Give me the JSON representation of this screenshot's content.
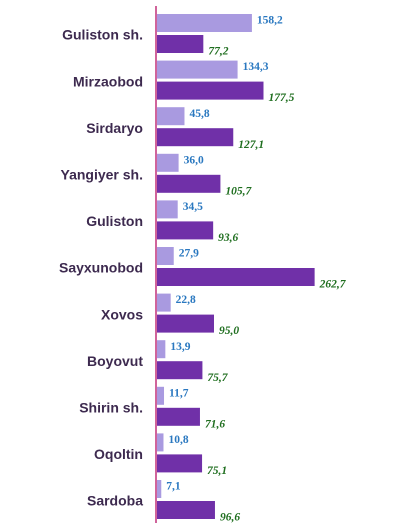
{
  "chart_data": {
    "type": "bar",
    "orientation": "horizontal",
    "categories": [
      "Guliston sh.",
      "Mirzaobod",
      "Sirdaryo",
      "Yangiyer sh.",
      "Guliston",
      "Sayxunobod",
      "Xovos",
      "Boyovut",
      "Shirin sh.",
      "Oqoltin",
      "Sardoba"
    ],
    "series": [
      {
        "values": [
          158.2,
          134.3,
          45.8,
          36.0,
          34.5,
          27.9,
          22.8,
          13.9,
          11.7,
          10.8,
          7.1
        ],
        "labels": [
          "158,2",
          "134,3",
          "45,8",
          "36,0",
          "34,5",
          "27,9",
          "22,8",
          "13,9",
          "11,7",
          "10,8",
          "7,1"
        ],
        "color": "#a99ae0",
        "label_color": "#2a78c0"
      },
      {
        "values": [
          77.2,
          177.5,
          127.1,
          105.7,
          93.6,
          262.7,
          95.0,
          75.7,
          71.6,
          75.1,
          96.6
        ],
        "labels": [
          "77,2",
          "177,5",
          "127,1",
          "105,7",
          "93,6",
          "262,7",
          "95,0",
          "75,7",
          "71,6",
          "75,1",
          "96,6"
        ],
        "color": "#7030a8",
        "label_color": "#1f6e1f"
      }
    ],
    "axis_color": "#c0307a",
    "grid": false
  }
}
